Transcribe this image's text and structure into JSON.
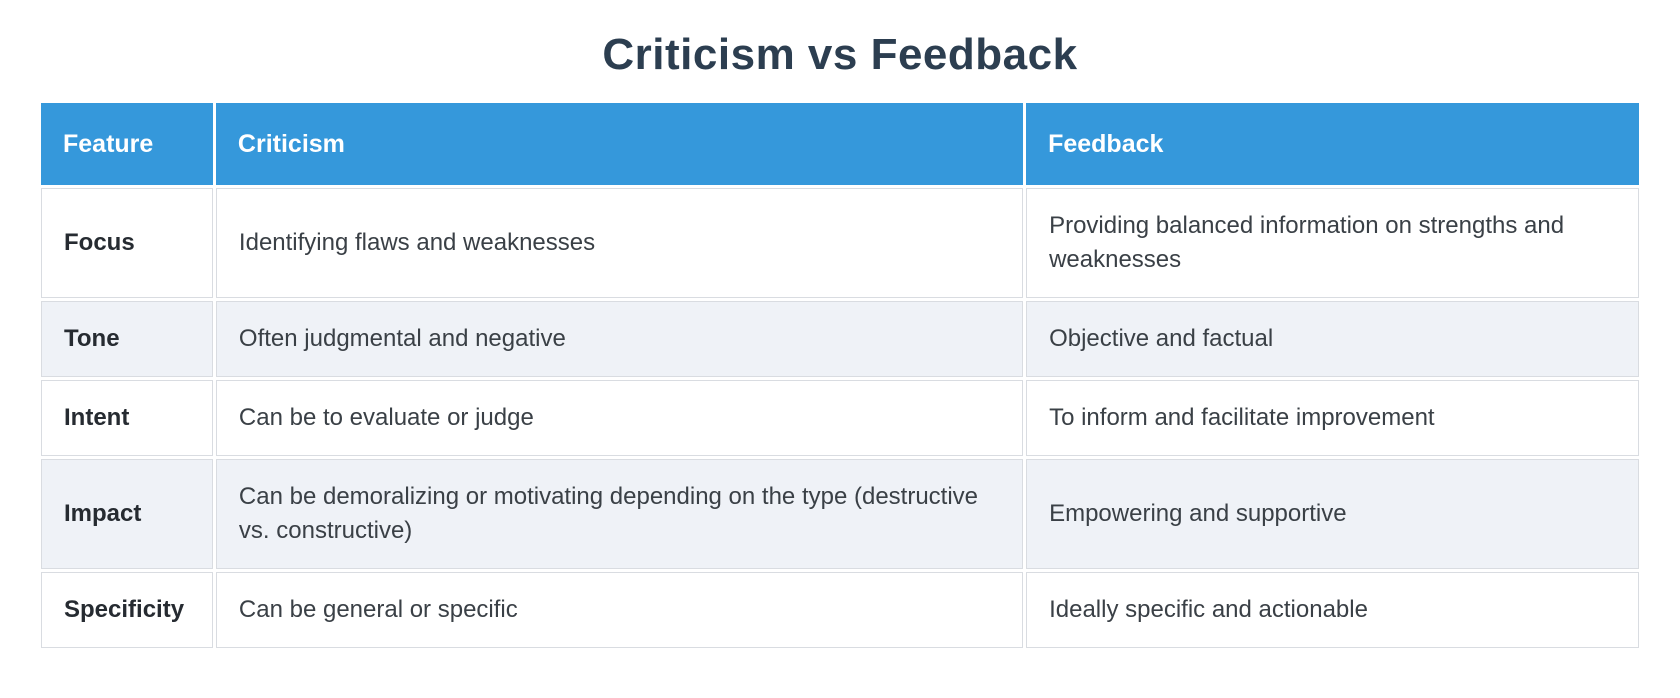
{
  "title": "Criticism vs Feedback",
  "table": {
    "headers": [
      "Feature",
      "Criticism",
      "Feedback"
    ],
    "rows": [
      {
        "feature": "Focus",
        "criticism": "Identifying flaws and weaknesses",
        "feedback": "Providing balanced information on strengths and weaknesses"
      },
      {
        "feature": "Tone",
        "criticism": "Often judgmental and negative",
        "feedback": "Objective and factual"
      },
      {
        "feature": "Intent",
        "criticism": "Can be to evaluate or judge",
        "feedback": "To inform and facilitate improvement"
      },
      {
        "feature": "Impact",
        "criticism": "Can be demoralizing or motivating depending on the type (destructive vs. constructive)",
        "feedback": "Empowering and supportive"
      },
      {
        "feature": "Specificity",
        "criticism": "Can be general or specific",
        "feedback": "Ideally specific and actionable"
      }
    ]
  },
  "colors": {
    "header_bg": "#3598db",
    "header_text": "#ffffff",
    "row_bg": "#ffffff",
    "row_alt_bg": "#eff2f7",
    "border": "#d9dce1",
    "title_text": "#2c3e50",
    "body_text": "#3a4046"
  }
}
